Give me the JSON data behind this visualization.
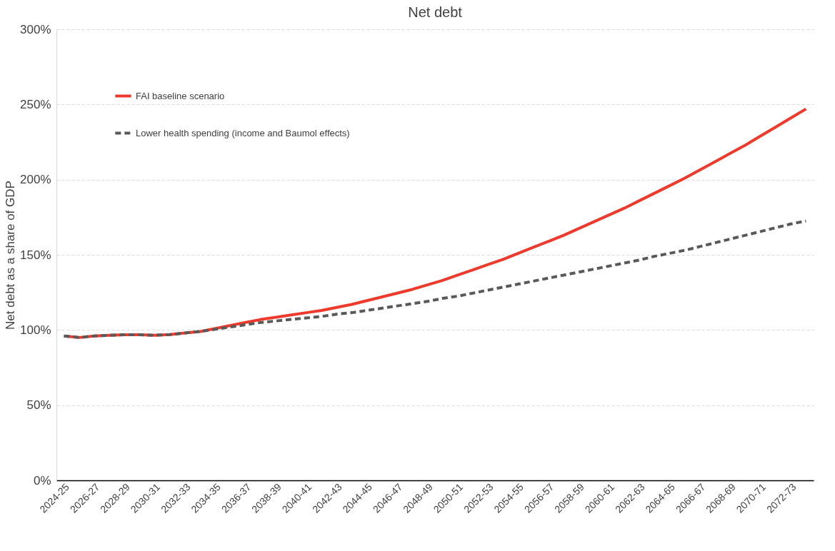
{
  "chart_data": {
    "type": "line",
    "title": "Net debt",
    "ylabel": "Net debt as a share of GDP",
    "categories": [
      "2024-25",
      null,
      "2026-27",
      null,
      "2028-29",
      null,
      "2030-31",
      null,
      "2032-33",
      null,
      "2034-35",
      null,
      "2036-37",
      null,
      "2038-39",
      null,
      "2040-41",
      null,
      "2042-43",
      null,
      "2044-45",
      null,
      "2046-47",
      null,
      "2048-49",
      null,
      "2050-51",
      null,
      "2052-53",
      null,
      "2054-55",
      null,
      "2056-57",
      null,
      "2058-59",
      null,
      "2060-61",
      null,
      "2062-63",
      null,
      "2064-65",
      null,
      "2066-67",
      null,
      "2068-69",
      null,
      "2070-71",
      null,
      "2072-73",
      null
    ],
    "series": [
      {
        "name": "FAI baseline scenario",
        "color": "#ee3a2c",
        "line_style": "solid",
        "values": [
          96,
          95,
          96,
          96.5,
          96.8,
          96.8,
          96.5,
          97,
          98,
          99,
          101,
          103,
          105,
          107,
          108.5,
          110,
          111.5,
          113,
          115,
          117,
          119.5,
          122,
          124.5,
          127,
          130,
          133,
          136.5,
          140,
          143.5,
          147,
          151,
          155,
          159,
          163,
          167.5,
          172,
          176.5,
          181,
          186,
          191,
          196,
          201,
          206.5,
          212,
          217.5,
          223,
          229,
          235,
          241,
          247
        ]
      },
      {
        "name": "Lower health spending (income and Baumol effects)",
        "color": "#595959",
        "line_style": "dashed",
        "values": [
          96,
          95,
          96,
          96.5,
          96.8,
          96.8,
          96.5,
          97,
          98,
          99,
          100.5,
          102,
          103.5,
          105,
          106,
          107,
          108,
          109,
          110.5,
          111.5,
          113,
          114.5,
          116,
          117.5,
          119,
          121,
          122.5,
          124.5,
          126.5,
          128.5,
          130.5,
          132.5,
          134.5,
          136.5,
          138.5,
          140.5,
          142.5,
          144.5,
          146.5,
          149,
          151,
          153,
          155.5,
          158,
          160.5,
          163,
          165.5,
          168,
          170.5,
          172.5
        ]
      }
    ],
    "ylim": [
      0,
      300
    ],
    "yticks": [
      {
        "value": 0,
        "label": "0%"
      },
      {
        "value": 50,
        "label": "50%"
      },
      {
        "value": 100,
        "label": "100%"
      },
      {
        "value": 150,
        "label": "150%"
      },
      {
        "value": 200,
        "label": "200%"
      },
      {
        "value": 250,
        "label": "250%"
      },
      {
        "value": 300,
        "label": "300%"
      }
    ],
    "grid": "y",
    "legend": "top left",
    "marker": "none"
  }
}
